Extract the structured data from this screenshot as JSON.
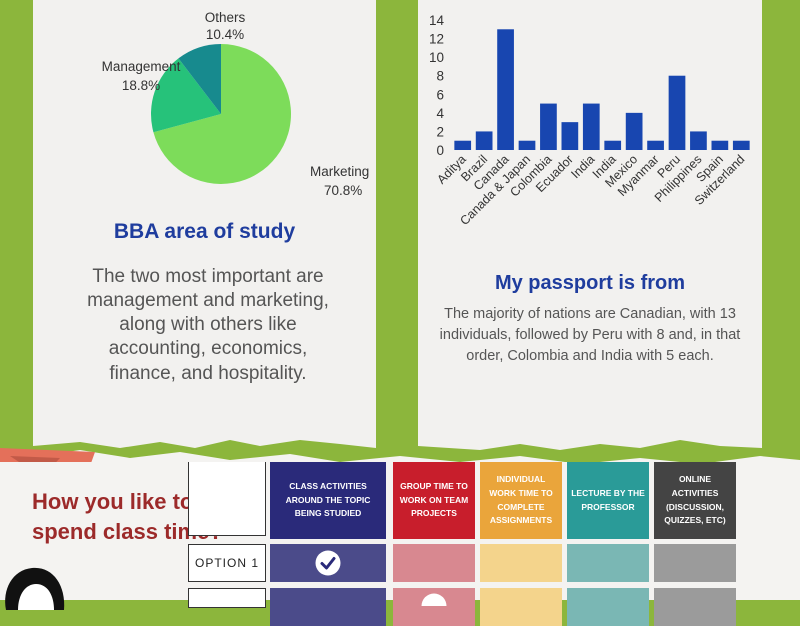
{
  "left_panel": {
    "title": "BBA area of study",
    "description": "The two most important are management and marketing, along with others like accounting, economics, finance, and hospitality."
  },
  "right_panel": {
    "title": "My passport is from",
    "description": "The majority of nations are Canadian, with 13 individuals, followed by Peru with 8 and, in that order, Colombia and India with 5 each."
  },
  "chart_data": [
    {
      "type": "pie",
      "labels": [
        "Marketing",
        "Management",
        "Others"
      ],
      "values": [
        70.8,
        18.8,
        10.4
      ],
      "value_labels": [
        "70.8%",
        "18.8%",
        "10.4%"
      ],
      "colors": [
        "#7ddc5a",
        "#26c27a",
        "#178a8e"
      ]
    },
    {
      "type": "bar",
      "categories": [
        "Aditya",
        "Brazil",
        "Canada",
        "Canada & Japan",
        "Colombia",
        "Ecuador",
        "India",
        "India",
        "Mexico",
        "Myanmar",
        "Peru",
        "Philippines",
        "Spain",
        "Switzerland"
      ],
      "values": [
        1,
        2,
        13,
        1,
        5,
        3,
        5,
        1,
        4,
        1,
        8,
        2,
        1,
        1
      ],
      "ylim": [
        0,
        14
      ],
      "yticks": [
        "0",
        "2",
        "4",
        "6",
        "8",
        "10",
        "12",
        "14"
      ],
      "color": "#1846b0"
    }
  ],
  "class_time": {
    "question_line1": "How you like to",
    "question_line2": "spend class time?",
    "columns": [
      {
        "label": "CLASS ACTIVITIES AROUND THE TOPIC BEING STUDIED",
        "header_color": "#2a2a7a",
        "cell_color": "#4b4b8a"
      },
      {
        "label": "GROUP TIME TO WORK ON TEAM PROJECTS",
        "header_color": "#c81e2c",
        "cell_color": "#d88890"
      },
      {
        "label": "INDIVIDUAL WORK TIME TO COMPLETE ASSIGNMENTS",
        "header_color": "#eaa53b",
        "cell_color": "#f4d48c"
      },
      {
        "label": "LECTURE BY THE PROFESSOR",
        "header_color": "#2a9b98",
        "cell_color": "#7ab7b4"
      },
      {
        "label": "ONLINE ACTIVITIES (DISCUSSION, QUIZZES, ETC)",
        "header_color": "#444444",
        "cell_color": "#9b9b9b"
      }
    ],
    "options": [
      "OPTION 1"
    ],
    "checked_column": 0
  }
}
